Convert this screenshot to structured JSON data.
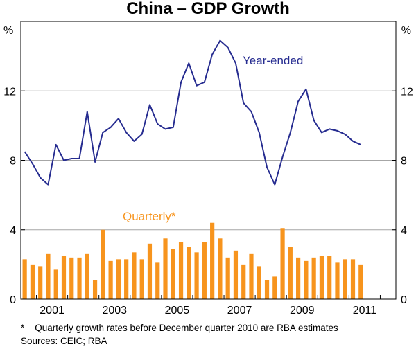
{
  "chart_data": {
    "type": "bar+line",
    "title": "China – GDP Growth",
    "ylabel_left": "%",
    "ylabel_right": "%",
    "ylim": [
      0,
      16
    ],
    "yticks": [
      0,
      4,
      8,
      12
    ],
    "ytick_labels": [
      "0",
      "4",
      "8",
      "12"
    ],
    "xlim": [
      2000.5,
      2012.5
    ],
    "xticks": [
      2001,
      2003,
      2005,
      2007,
      2009,
      2011
    ],
    "xtick_labels": [
      "2001",
      "2003",
      "2005",
      "2007",
      "2009",
      "2011"
    ],
    "grid": true,
    "series": [
      {
        "name": "Year-ended",
        "type": "line",
        "color": "#262c90",
        "x": [
          2000.625,
          2000.875,
          2001.125,
          2001.375,
          2001.625,
          2001.875,
          2002.125,
          2002.375,
          2002.625,
          2002.875,
          2003.125,
          2003.375,
          2003.625,
          2003.875,
          2004.125,
          2004.375,
          2004.625,
          2004.875,
          2005.125,
          2005.375,
          2005.625,
          2005.875,
          2006.125,
          2006.375,
          2006.625,
          2006.875,
          2007.125,
          2007.375,
          2007.625,
          2007.875,
          2008.125,
          2008.375,
          2008.625,
          2008.875,
          2009.125,
          2009.375,
          2009.625,
          2009.875,
          2010.125,
          2010.375,
          2010.625,
          2010.875,
          2011.125,
          2011.375
        ],
        "values": [
          8.5,
          7.8,
          7.0,
          6.6,
          8.9,
          8.0,
          8.1,
          8.1,
          10.8,
          7.9,
          9.6,
          9.9,
          10.4,
          9.6,
          9.1,
          9.5,
          11.2,
          10.1,
          9.8,
          9.9,
          12.5,
          13.6,
          12.3,
          12.5,
          14.1,
          14.9,
          14.5,
          13.6,
          11.3,
          10.8,
          9.6,
          7.6,
          6.6,
          8.2,
          9.6,
          11.4,
          12.1,
          10.3,
          9.6,
          9.8,
          9.7,
          9.5,
          9.1,
          8.9
        ]
      },
      {
        "name": "Quarterly*",
        "type": "bar",
        "color": "#f7941d",
        "x": [
          2000.625,
          2000.875,
          2001.125,
          2001.375,
          2001.625,
          2001.875,
          2002.125,
          2002.375,
          2002.625,
          2002.875,
          2003.125,
          2003.375,
          2003.625,
          2003.875,
          2004.125,
          2004.375,
          2004.625,
          2004.875,
          2005.125,
          2005.375,
          2005.625,
          2005.875,
          2006.125,
          2006.375,
          2006.625,
          2006.875,
          2007.125,
          2007.375,
          2007.625,
          2007.875,
          2008.125,
          2008.375,
          2008.625,
          2008.875,
          2009.125,
          2009.375,
          2009.625,
          2009.875,
          2010.125,
          2010.375,
          2010.625,
          2010.875,
          2011.125,
          2011.375
        ],
        "values": [
          2.3,
          2.0,
          1.9,
          2.6,
          1.7,
          2.5,
          2.4,
          2.4,
          2.6,
          1.1,
          4.0,
          2.2,
          2.3,
          2.3,
          2.7,
          2.3,
          3.2,
          2.1,
          3.5,
          2.9,
          3.3,
          3.0,
          2.7,
          3.3,
          4.4,
          3.5,
          2.4,
          2.8,
          2.0,
          2.6,
          1.9,
          1.1,
          1.3,
          4.1,
          3.0,
          2.4,
          2.2,
          2.4,
          2.5,
          2.5,
          2.1,
          2.3,
          2.3,
          2.0
        ]
      }
    ],
    "annotations": [
      {
        "text": "Year-ended",
        "color": "#262c90"
      },
      {
        "text": "Quarterly*",
        "color": "#f7941d"
      }
    ],
    "footnote": "*    Quarterly growth rates before December quarter 2010 are RBA estimates",
    "sources": "Sources: CEIC; RBA"
  }
}
